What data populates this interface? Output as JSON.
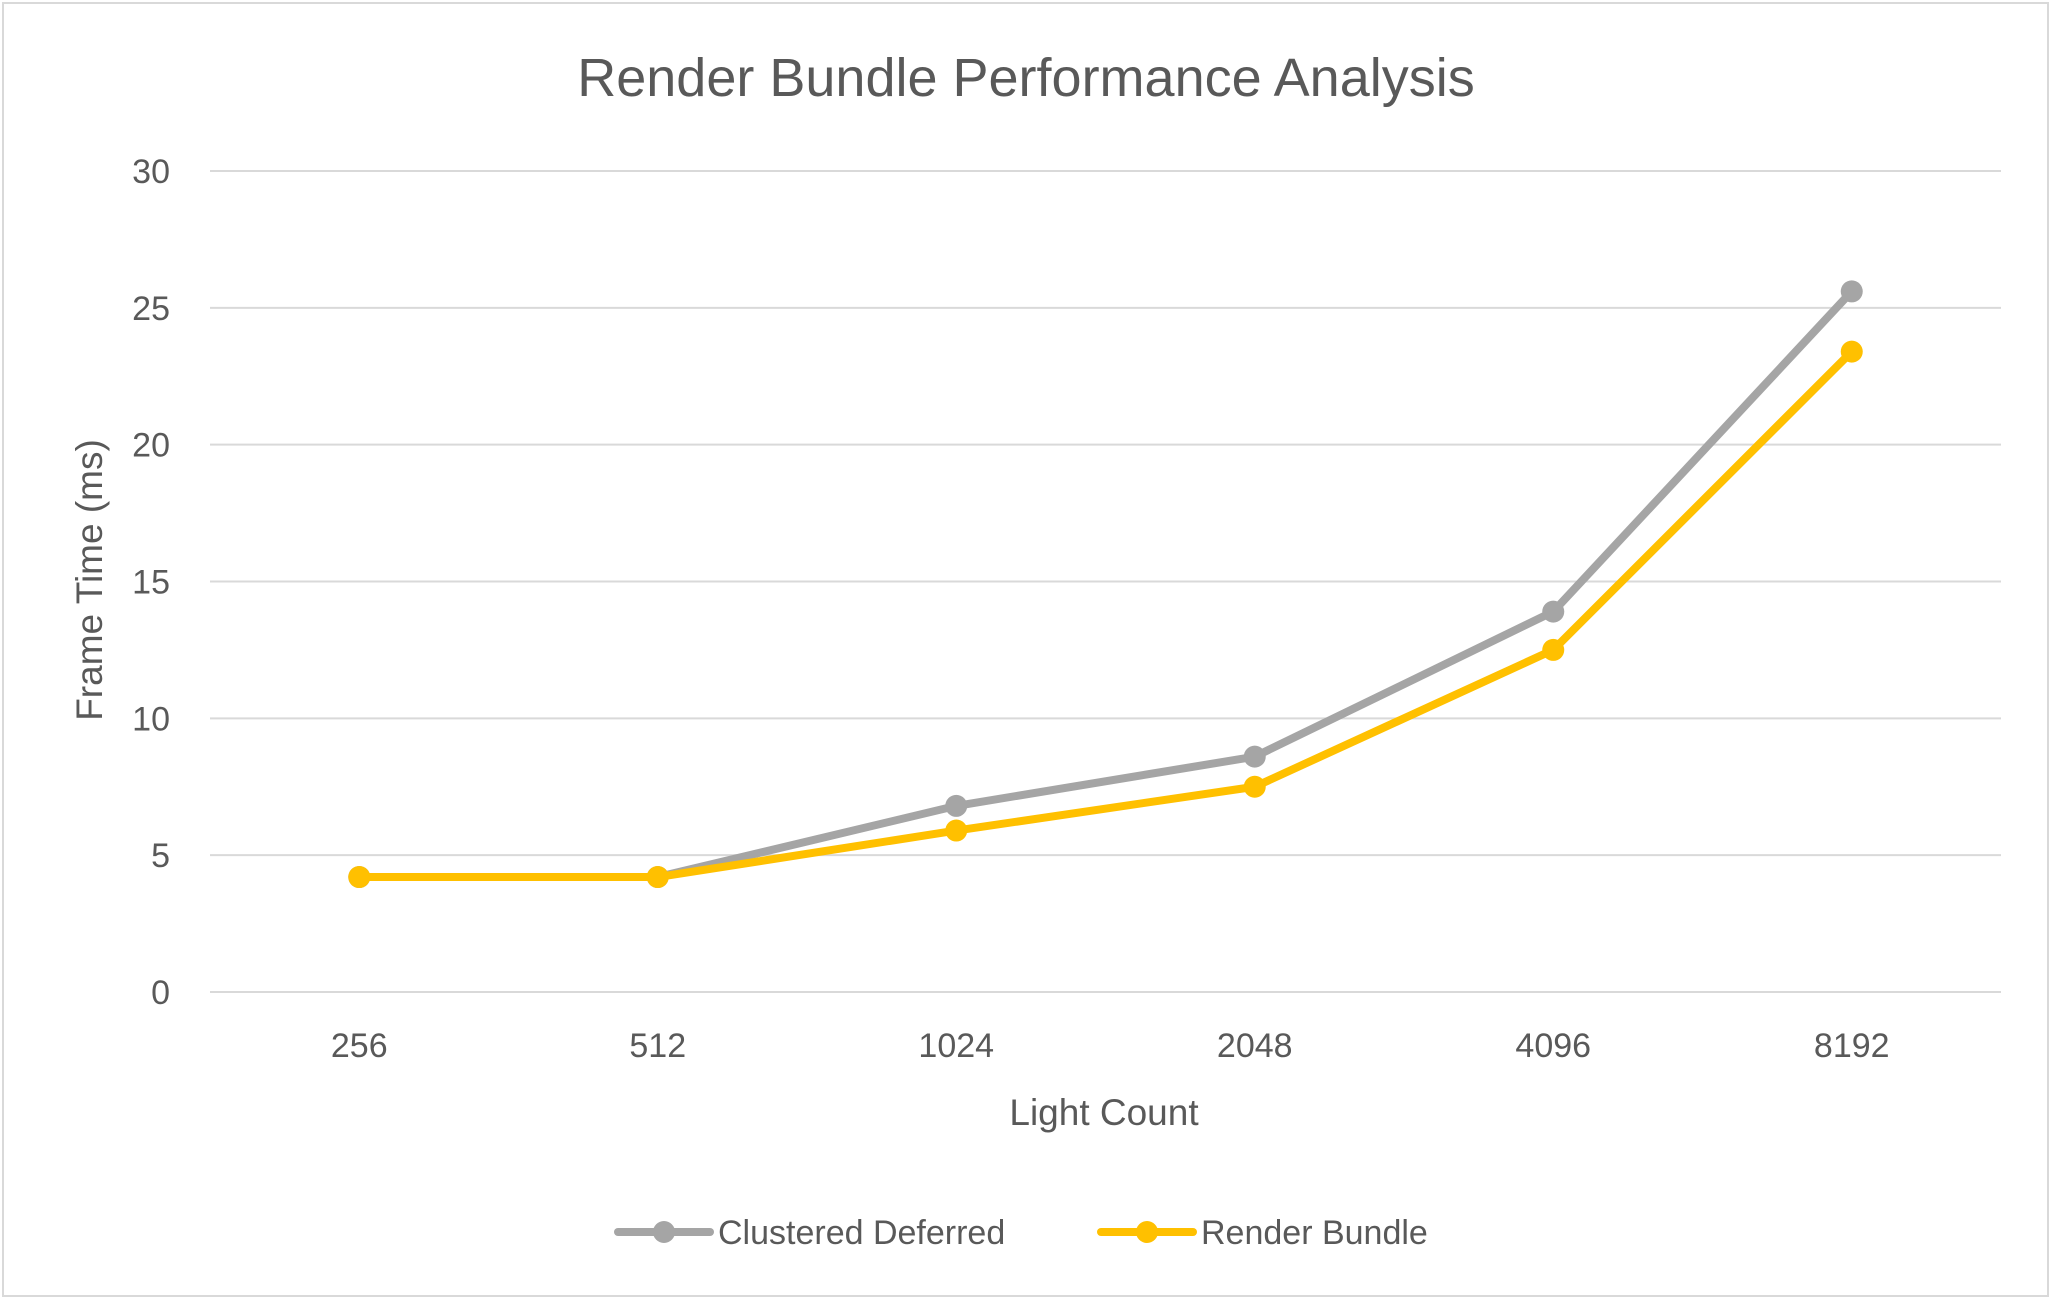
{
  "chart_data": {
    "type": "line",
    "title": "Render Bundle Performance Analysis",
    "xlabel": "Light Count",
    "ylabel": "Frame Time (ms)",
    "categories": [
      "256",
      "512",
      "1024",
      "2048",
      "4096",
      "8192"
    ],
    "ylim": [
      0,
      30
    ],
    "yticks": [
      "0",
      "5",
      "10",
      "15",
      "20",
      "25",
      "30"
    ],
    "grid": true,
    "legend": "bottom",
    "series": [
      {
        "name": "Clustered Deferred",
        "color": "#a5a5a5",
        "values": [
          4.2,
          4.2,
          6.8,
          8.6,
          13.9,
          25.6
        ]
      },
      {
        "name": "Render Bundle",
        "color": "#ffc000",
        "values": [
          4.2,
          4.2,
          5.9,
          7.5,
          12.5,
          23.4
        ]
      }
    ]
  }
}
